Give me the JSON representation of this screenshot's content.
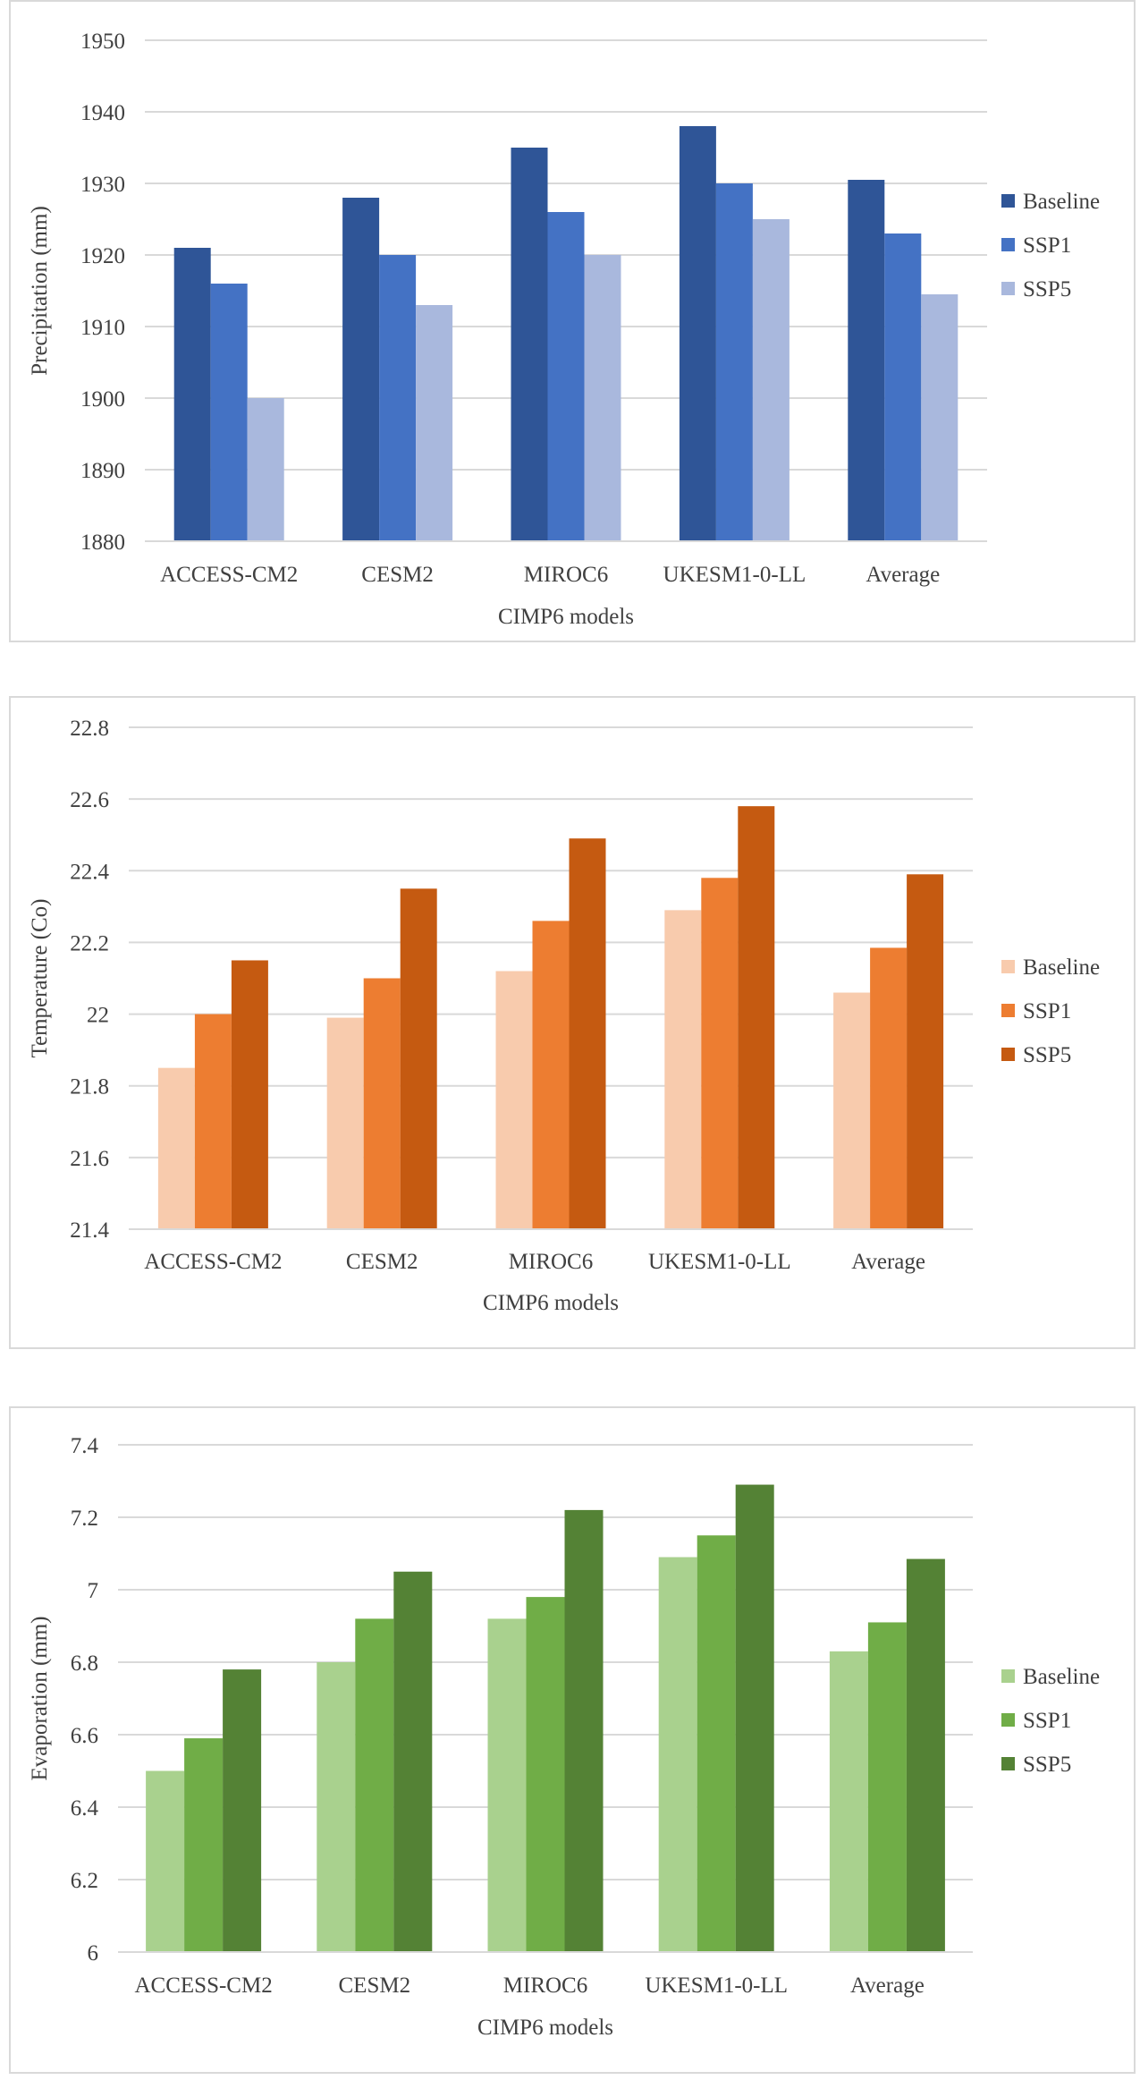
{
  "chart_data": [
    {
      "type": "bar",
      "title": "",
      "xlabel": "CIMP6 models",
      "ylabel": "Precipitation (mm)",
      "ylim": [
        1880,
        1950
      ],
      "yticks": [
        1880,
        1890,
        1900,
        1910,
        1920,
        1930,
        1940,
        1950
      ],
      "grid": true,
      "legend_position": "right",
      "categories": [
        "ACCESS-CM2",
        "CESM2",
        "MIROC6",
        "UKESM1-0-LL",
        "Average"
      ],
      "series": [
        {
          "name": "Baseline",
          "color": "#2f5597",
          "values": [
            1921,
            1928,
            1935,
            1938,
            1930.5
          ]
        },
        {
          "name": "SSP1",
          "color": "#4472c4",
          "values": [
            1916,
            1920,
            1926,
            1930,
            1923
          ]
        },
        {
          "name": "SSP5",
          "color": "#a9b8dd",
          "values": [
            1900,
            1913,
            1920,
            1925,
            1914.5
          ]
        }
      ]
    },
    {
      "type": "bar",
      "title": "",
      "xlabel": "CIMP6 models",
      "ylabel": "Temperature (Co)",
      "ylim": [
        21.4,
        22.8
      ],
      "yticks": [
        "21.4",
        "21.6",
        "21.8",
        "22",
        "22.2",
        "22.4",
        "22.6",
        "22.8"
      ],
      "grid": true,
      "legend_position": "right",
      "categories": [
        "ACCESS-CM2",
        "CESM2",
        "MIROC6",
        "UKESM1-0-LL",
        "Average"
      ],
      "series": [
        {
          "name": "Baseline",
          "color": "#f8cbad",
          "values": [
            21.85,
            21.99,
            22.12,
            22.29,
            22.06
          ]
        },
        {
          "name": "SSP1",
          "color": "#ed7d31",
          "values": [
            22.0,
            22.1,
            22.26,
            22.38,
            22.185
          ]
        },
        {
          "name": "SSP5",
          "color": "#c55a11",
          "values": [
            22.15,
            22.35,
            22.49,
            22.58,
            22.39
          ]
        }
      ]
    },
    {
      "type": "bar",
      "title": "",
      "xlabel": "CIMP6 models",
      "ylabel": "Evaporation (mm)",
      "ylim": [
        6,
        7.4
      ],
      "yticks": [
        "6",
        "6.2",
        "6.4",
        "6.6",
        "6.8",
        "7",
        "7.2",
        "7.4"
      ],
      "grid": true,
      "legend_position": "right",
      "categories": [
        "ACCESS-CM2",
        "CESM2",
        "MIROC6",
        "UKESM1-0-LL",
        "Average"
      ],
      "series": [
        {
          "name": "Baseline",
          "color": "#a9d18e",
          "values": [
            6.5,
            6.8,
            6.92,
            7.09,
            6.83
          ]
        },
        {
          "name": "SSP1",
          "color": "#70ad47",
          "values": [
            6.59,
            6.92,
            6.98,
            7.15,
            6.91
          ]
        },
        {
          "name": "SSP5",
          "color": "#548235",
          "values": [
            6.78,
            7.05,
            7.22,
            7.29,
            7.085
          ]
        }
      ]
    }
  ]
}
